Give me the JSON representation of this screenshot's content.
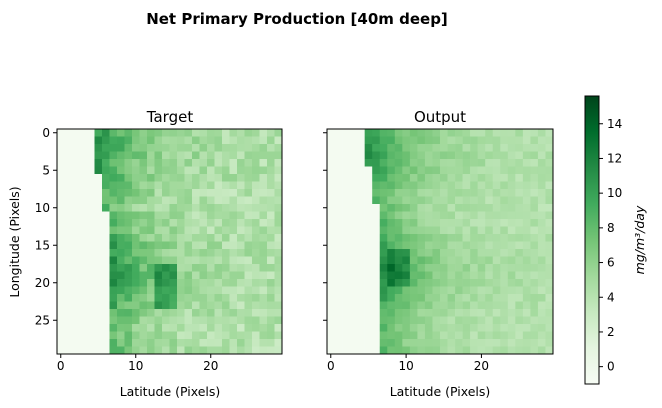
{
  "figure": {
    "suptitle": "Net Primary Production [40m deep]"
  },
  "chart_data": [
    {
      "type": "heatmap",
      "title": "Target",
      "xlabel": "Latitude (Pixels)",
      "ylabel": "Longitude (Pixels)",
      "grid_size": [
        30,
        30
      ],
      "x_ticks": [
        0,
        10,
        20
      ],
      "y_ticks": [
        0,
        5,
        10,
        15,
        20,
        25
      ],
      "colormap": "Greens",
      "vmin": -1,
      "vmax": 15.6,
      "land_columns_per_row": [
        4,
        4,
        4,
        4,
        4,
        4,
        5,
        5,
        5,
        5,
        5,
        6,
        6,
        6,
        6,
        6,
        6,
        6,
        6,
        6,
        6,
        6,
        6,
        6,
        6,
        6,
        6,
        6,
        6,
        6
      ]
    },
    {
      "type": "heatmap",
      "title": "Output",
      "xlabel": "Latitude (Pixels)",
      "ylabel": "",
      "grid_size": [
        30,
        30
      ],
      "x_ticks": [
        0,
        10,
        20
      ],
      "y_ticks": [
        0,
        5,
        10,
        15,
        20,
        25
      ],
      "colormap": "Greens",
      "vmin": -1,
      "vmax": 15.6,
      "land_columns_per_row": [
        4,
        4,
        4,
        4,
        4,
        5,
        5,
        5,
        5,
        5,
        6,
        6,
        6,
        6,
        6,
        6,
        6,
        6,
        6,
        6,
        6,
        6,
        6,
        6,
        6,
        6,
        6,
        6,
        6,
        6
      ]
    }
  ],
  "colorbar": {
    "label": "mg/m³/day",
    "ticks": [
      0,
      2,
      4,
      6,
      8,
      10,
      12,
      14
    ],
    "vmin": -1,
    "vmax": 15.6,
    "colormap": "Greens"
  },
  "colors": {
    "greens_stops": [
      "#f7fcf5",
      "#e5f5e0",
      "#c7e9c0",
      "#a1d99b",
      "#74c476",
      "#41ab5d",
      "#238b45",
      "#006d2c",
      "#00441b"
    ],
    "frame": "#000000",
    "background": "#ffffff"
  }
}
